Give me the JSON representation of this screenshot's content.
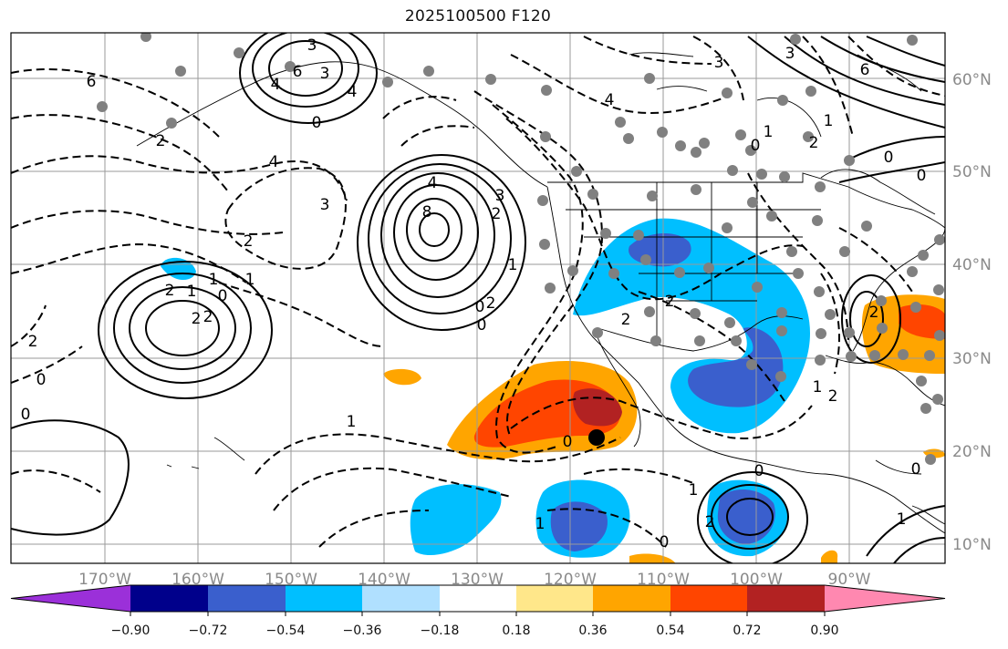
{
  "title": "2025100500 F120",
  "lon_labels": [
    "170°W",
    "160°W",
    "150°W",
    "140°W",
    "130°W",
    "120°W",
    "110°W",
    "100°W",
    "90°W"
  ],
  "lat_labels": [
    "60°N",
    "50°N",
    "40°N",
    "30°N",
    "20°N",
    "10°N"
  ],
  "colorbar": {
    "ticks": [
      "−0.90",
      "−0.72",
      "−0.54",
      "−0.36",
      "−0.18",
      "0.18",
      "0.36",
      "0.54",
      "0.72",
      "0.90"
    ],
    "colors": [
      "#9b30d9",
      "#00008b",
      "#3a5fcd",
      "#00bfff",
      "#b0e0ff",
      "#ffffff",
      "#ffe78a",
      "#ffa500",
      "#ff4500",
      "#b22222",
      "#ff88b0"
    ]
  },
  "contour_labels": [
    "3",
    "6",
    "4",
    "3",
    "4",
    "6",
    "6",
    "8",
    "4",
    "3",
    "2",
    "1",
    "0",
    "4",
    "3",
    "2",
    "1",
    "2",
    "0",
    "1",
    "2",
    "2",
    "1",
    "0",
    "0",
    "1",
    "0",
    "2",
    "2",
    "2",
    "2",
    "1",
    "0",
    "0",
    "0",
    "0",
    "1",
    "2",
    "2",
    "1",
    "0",
    "2",
    "3",
    "4",
    "3",
    "2",
    "1",
    "0",
    "0",
    "1",
    "2",
    "0",
    "1"
  ],
  "storm_marker": "hurricane-center"
}
